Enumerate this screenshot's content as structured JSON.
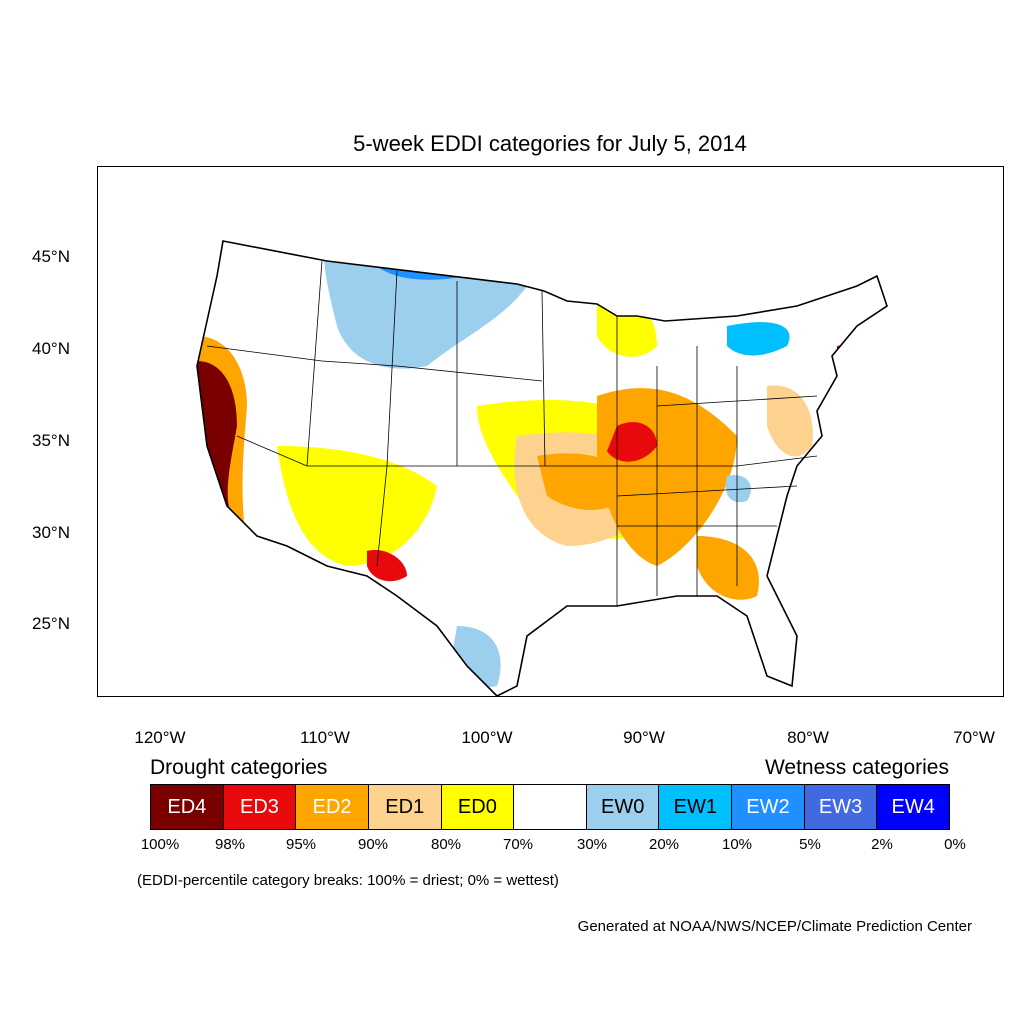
{
  "title": "5-week EDDI categories for July 5, 2014",
  "lat_labels": [
    "45°N",
    "40°N",
    "35°N",
    "30°N",
    "25°N"
  ],
  "lon_labels": [
    "120°W",
    "110°W",
    "100°W",
    "90°W",
    "80°W",
    "70°W"
  ],
  "legend": {
    "drought_heading": "Drought categories",
    "wetness_heading": "Wetness categories",
    "categories": [
      {
        "label": "ED4",
        "color": "#7a0000",
        "text_color": "#ffffff"
      },
      {
        "label": "ED3",
        "color": "#e8090c",
        "text_color": "#ffffff"
      },
      {
        "label": "ED2",
        "color": "#ffa500",
        "text_color": "#ffffff"
      },
      {
        "label": "ED1",
        "color": "#fcd28e",
        "text_color": "#000000"
      },
      {
        "label": "ED0",
        "color": "#ffff00",
        "text_color": "#000000"
      },
      {
        "label": "",
        "color": "#ffffff",
        "text_color": "#000000"
      },
      {
        "label": "EW0",
        "color": "#9ccfee",
        "text_color": "#000000"
      },
      {
        "label": "EW1",
        "color": "#00bfff",
        "text_color": "#000000"
      },
      {
        "label": "EW2",
        "color": "#1e90ff",
        "text_color": "#ffffff"
      },
      {
        "label": "EW3",
        "color": "#4169e1",
        "text_color": "#ffffff"
      },
      {
        "label": "EW4",
        "color": "#0000ff",
        "text_color": "#ffffff"
      }
    ],
    "breaks": [
      "100%",
      "98%",
      "95%",
      "90%",
      "80%",
      "70%",
      "30%",
      "20%",
      "10%",
      "5%",
      "2%",
      "0%"
    ]
  },
  "note": "(EDDI-percentile category breaks: 100% = driest; 0% = wettest)",
  "credit": "Generated at NOAA/NWS/NCEP/Climate Prediction Center"
}
